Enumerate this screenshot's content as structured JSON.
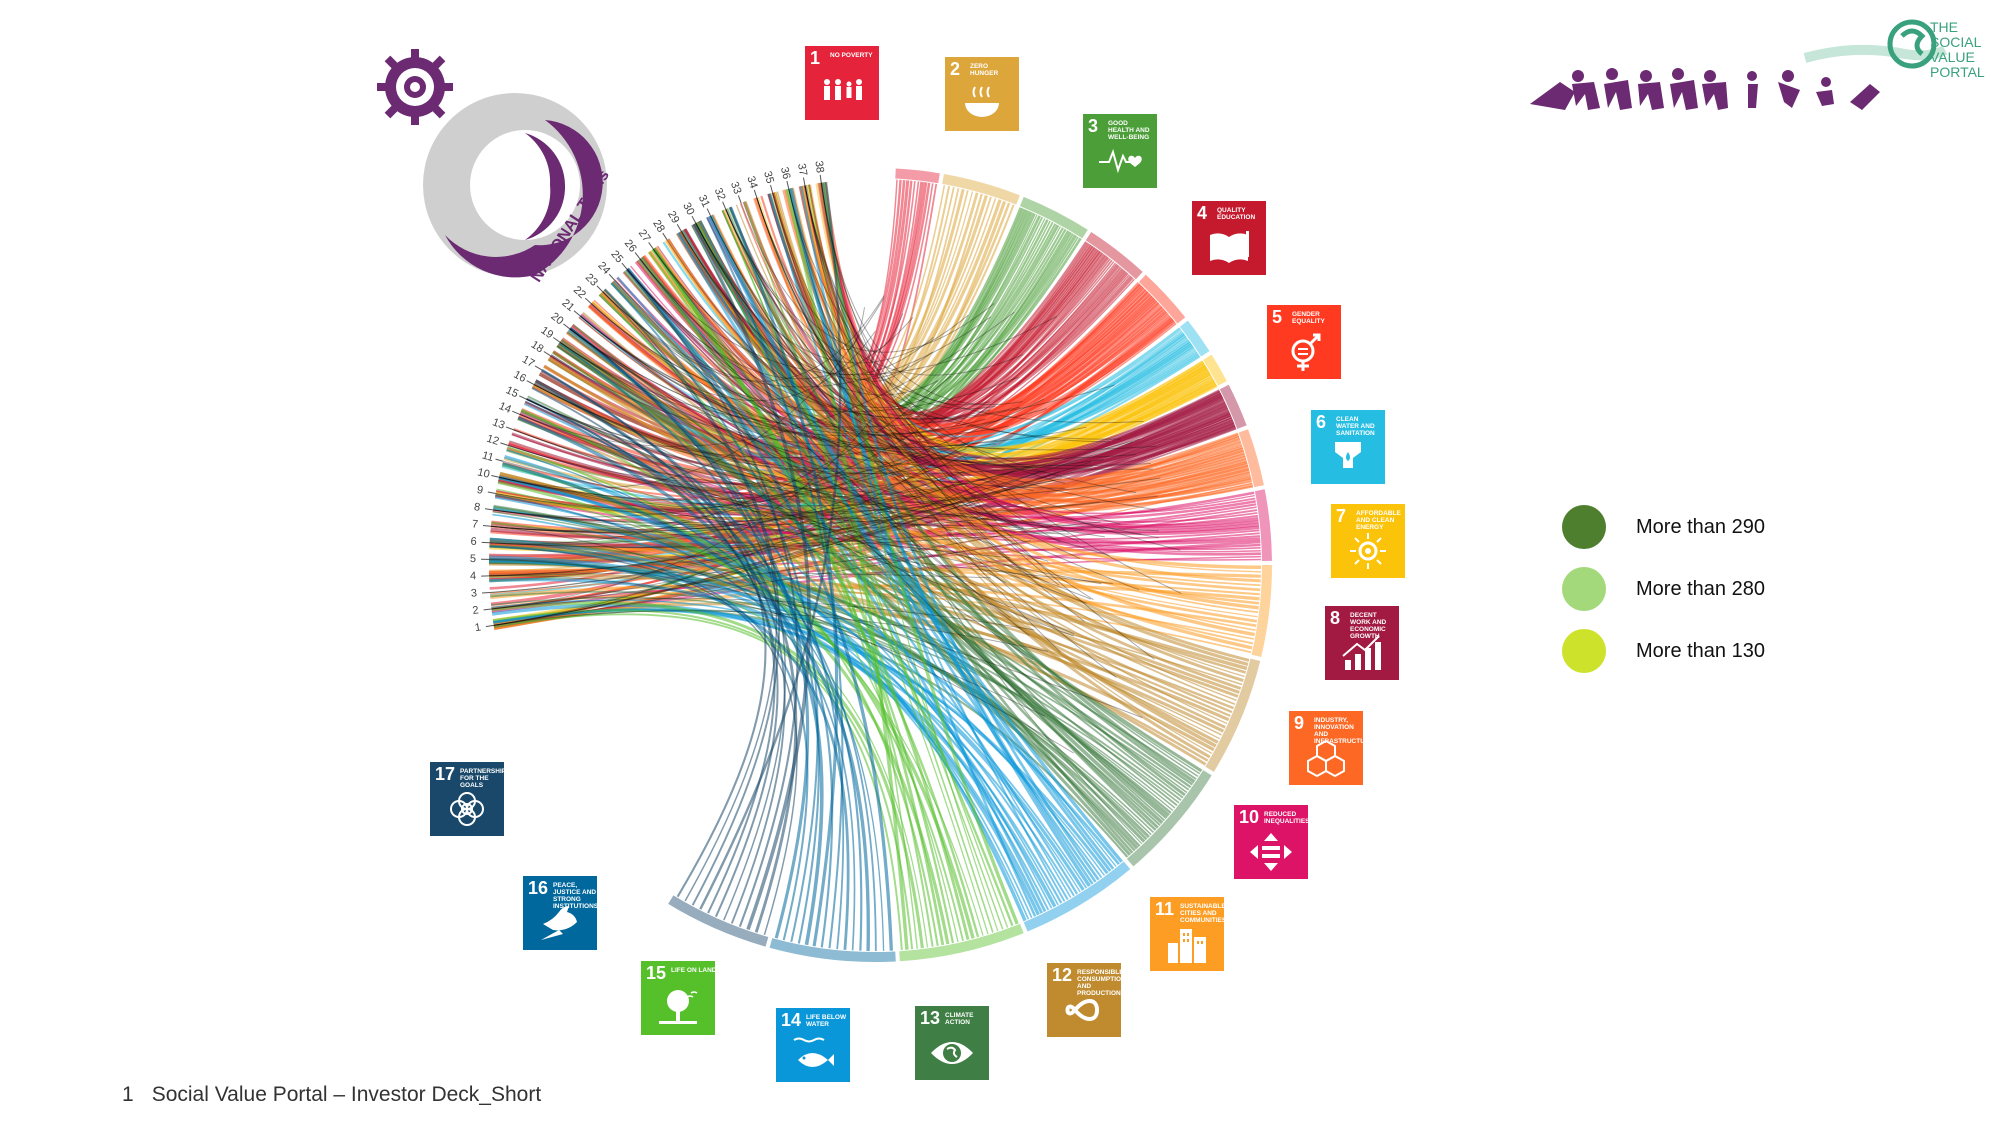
{
  "sdgs": [
    {
      "num": "1",
      "title": "NO POVERTY",
      "color": "#e5243b",
      "icon": "people-icon"
    },
    {
      "num": "2",
      "title": "ZERO HUNGER",
      "color": "#dda63a",
      "icon": "bowl-icon"
    },
    {
      "num": "3",
      "title": "GOOD HEALTH AND WELL-BEING",
      "color": "#4c9f38",
      "icon": "heartbeat-icon"
    },
    {
      "num": "4",
      "title": "QUALITY EDUCATION",
      "color": "#c5192d",
      "icon": "book-icon"
    },
    {
      "num": "5",
      "title": "GENDER EQUALITY",
      "color": "#ff3a21",
      "icon": "gender-icon"
    },
    {
      "num": "6",
      "title": "CLEAN WATER AND SANITATION",
      "color": "#26bde2",
      "icon": "water-icon"
    },
    {
      "num": "7",
      "title": "AFFORDABLE AND CLEAN ENERGY",
      "color": "#fcc30b",
      "icon": "sun-icon"
    },
    {
      "num": "8",
      "title": "DECENT WORK AND ECONOMIC GROWTH",
      "color": "#a21942",
      "icon": "growth-chart-icon"
    },
    {
      "num": "9",
      "title": "INDUSTRY, INNOVATION AND INFRASTRUCTURE",
      "color": "#fd6925",
      "icon": "cubes-icon"
    },
    {
      "num": "10",
      "title": "REDUCED INEQUALITIES",
      "color": "#dd1367",
      "icon": "equality-icon"
    },
    {
      "num": "11",
      "title": "SUSTAINABLE CITIES AND COMMUNITIES",
      "color": "#fd9d24",
      "icon": "city-icon"
    },
    {
      "num": "12",
      "title": "RESPONSIBLE CONSUMPTION AND PRODUCTION",
      "color": "#bf8b2e",
      "icon": "infinity-icon"
    },
    {
      "num": "13",
      "title": "CLIMATE ACTION",
      "color": "#3f7e44",
      "icon": "eye-globe-icon"
    },
    {
      "num": "14",
      "title": "LIFE BELOW WATER",
      "color": "#0a97d9",
      "icon": "fish-icon"
    },
    {
      "num": "15",
      "title": "LIFE ON LAND",
      "color": "#56c02b",
      "icon": "tree-icon"
    },
    {
      "num": "16",
      "title": "PEACE, JUSTICE AND STRONG INSTITUTIONS",
      "color": "#00689d",
      "icon": "dove-icon"
    },
    {
      "num": "17",
      "title": "PARTNERSHIPS FOR THE GOALS",
      "color": "#19486a",
      "icon": "rings-icon"
    }
  ],
  "toms_labels": [
    "1",
    "2",
    "3",
    "4",
    "5",
    "6",
    "7",
    "8",
    "9",
    "10",
    "11",
    "12",
    "13",
    "14",
    "15",
    "16",
    "17",
    "18",
    "19",
    "20",
    "21",
    "22",
    "23",
    "24",
    "25",
    "26",
    "27",
    "28",
    "29",
    "30",
    "31",
    "32",
    "33",
    "34",
    "35",
    "36",
    "37",
    "38"
  ],
  "legend": [
    {
      "label": "More than 290",
      "color": "#4e7f2f"
    },
    {
      "label": "More than 280",
      "color": "#a3d97a"
    },
    {
      "label": "More than 130",
      "color": "#cde22a"
    }
  ],
  "logos": {
    "national_toms": "NATIONAL TOMs",
    "svp_lines": [
      "THE",
      "SOCIAL",
      "VALUE",
      "PORTAL"
    ]
  },
  "footer": {
    "page": "1",
    "text": "Social Value Portal – Investor Deck_Short"
  },
  "colors": {
    "toms_purple": "#6b2a72",
    "toms_grey": "#cfcfcf",
    "svp_green": "#3aa17e",
    "ribbon_dark": "#111111"
  }
}
